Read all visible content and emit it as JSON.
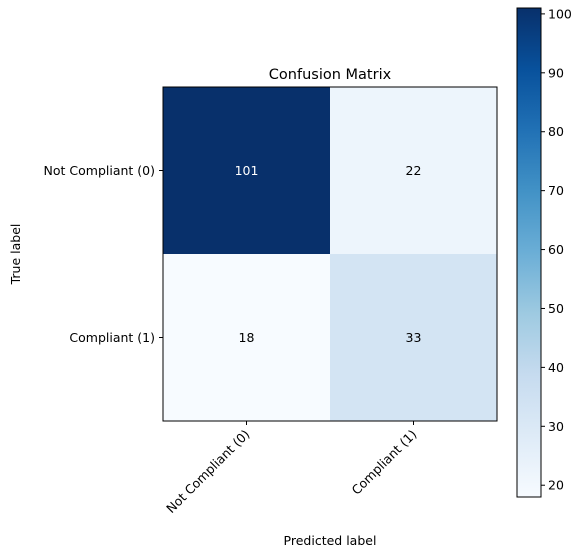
{
  "chart_data": {
    "type": "heatmap",
    "title": "Confusion Matrix",
    "xlabel": "Predicted label",
    "ylabel": "True label",
    "x_categories": [
      "Not Compliant (0)",
      "Compliant (1)"
    ],
    "y_categories": [
      "Not Compliant (0)",
      "Compliant (1)"
    ],
    "values": [
      [
        101,
        22
      ],
      [
        18,
        33
      ]
    ],
    "colormap": "Blues",
    "colorbar": {
      "min": 18,
      "max": 101,
      "ticks": [
        20,
        30,
        40,
        50,
        60,
        70,
        80,
        90,
        100
      ]
    },
    "cell_text_colors": {
      "dark": "#ffffff",
      "light": "#000000"
    },
    "grid": false,
    "legend": "colorbar-right"
  }
}
